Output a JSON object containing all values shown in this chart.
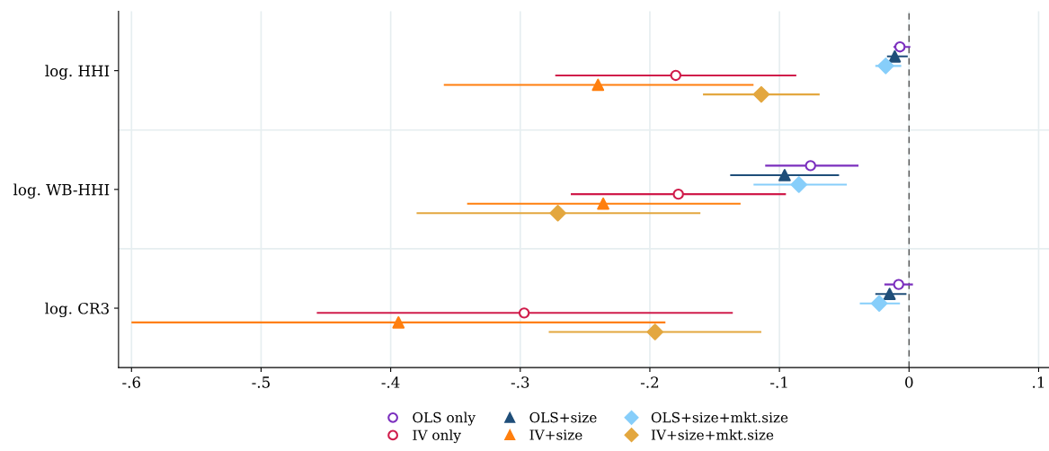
{
  "chart_data": {
    "type": "scatter",
    "orientation": "horizontal",
    "categories": [
      "log. HHI",
      "log. WB-HHI",
      "log. CR3"
    ],
    "xlim": [
      -0.61,
      0.108
    ],
    "xticks": [
      {
        "value": -0.6,
        "label": "-.6"
      },
      {
        "value": -0.5,
        "label": "-.5"
      },
      {
        "value": -0.4,
        "label": "-.4"
      },
      {
        "value": -0.3,
        "label": "-.3"
      },
      {
        "value": -0.2,
        "label": "-.2"
      },
      {
        "value": -0.1,
        "label": "-.1"
      },
      0,
      {
        "value": 0.1,
        "label": ".1"
      }
    ],
    "grid": true,
    "legend": "bottom",
    "ref_lines": [
      {
        "axis": "x",
        "value": 0,
        "color": "#555555",
        "line_style": "dashed"
      }
    ],
    "series": [
      {
        "name": "OLS only",
        "color": "#7b2fbe",
        "marker": "circle",
        "values": [
          -0.007,
          -0.076,
          -0.008
        ],
        "errors": [
          [
            -0.012,
            0.001
          ],
          [
            -0.111,
            -0.039
          ],
          [
            -0.019,
            0.003
          ]
        ]
      },
      {
        "name": "OLS+size",
        "color": "#1f4e79",
        "marker": "triangle",
        "values": [
          -0.011,
          -0.096,
          -0.015
        ],
        "errors": [
          [
            -0.017,
            -0.001
          ],
          [
            -0.138,
            -0.054
          ],
          [
            -0.026,
            -0.002
          ]
        ]
      },
      {
        "name": "OLS+size+mkt.size",
        "color": "#87cefa",
        "marker": "diamond",
        "values": [
          -0.018,
          -0.085,
          -0.023
        ],
        "errors": [
          [
            -0.026,
            -0.006
          ],
          [
            -0.12,
            -0.048
          ],
          [
            -0.038,
            -0.007
          ]
        ]
      },
      {
        "name": "IV only",
        "color": "#d01c4b",
        "marker": "circle",
        "values": [
          -0.18,
          -0.178,
          -0.297
        ],
        "errors": [
          [
            -0.273,
            -0.087
          ],
          [
            -0.261,
            -0.095
          ],
          [
            -0.457,
            -0.136
          ]
        ]
      },
      {
        "name": "IV+size",
        "color": "#ff7f0e",
        "marker": "triangle",
        "values": [
          -0.24,
          -0.236,
          -0.394
        ],
        "errors": [
          [
            -0.359,
            -0.12
          ],
          [
            -0.341,
            -0.13
          ],
          [
            -0.6,
            -0.188
          ]
        ]
      },
      {
        "name": "IV+size+mkt.size",
        "color": "#e3a73f",
        "marker": "diamond",
        "values": [
          -0.114,
          -0.271,
          -0.196
        ],
        "errors": [
          [
            -0.159,
            -0.069
          ],
          [
            -0.38,
            -0.161
          ],
          [
            -0.278,
            -0.114
          ]
        ]
      }
    ]
  }
}
